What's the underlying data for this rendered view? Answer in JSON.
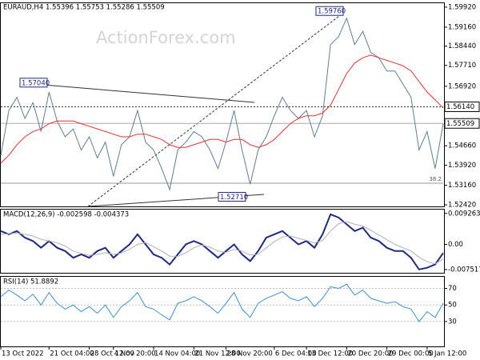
{
  "chart_data": [
    {
      "type": "line",
      "title": "EURAUD,H4  1.55396 1.55753 1.55286 1.55509",
      "watermark": "ActionForex.com",
      "ylim": [
        1.5236,
        1.6007
      ],
      "yticks": [
        {
          "value": 1.5992,
          "label": "1.59920"
        },
        {
          "value": 1.5916,
          "label": "1.59160"
        },
        {
          "value": 1.5844,
          "label": "1.58440"
        },
        {
          "value": 1.5771,
          "label": "1.57710"
        },
        {
          "value": 1.5692,
          "label": "1.56920"
        },
        {
          "value": 1.5466,
          "label": "1.54660"
        },
        {
          "value": 1.5392,
          "label": "1.53920"
        },
        {
          "value": 1.5316,
          "label": "1.53160"
        },
        {
          "value": 1.5242,
          "label": "1.52420"
        }
      ],
      "series": [
        {
          "color": "#5b7f95",
          "values": [
            1.543,
            1.56,
            1.565,
            1.557,
            1.563,
            1.552,
            1.567,
            1.556,
            1.55,
            1.553,
            1.545,
            1.55,
            1.542,
            1.548,
            1.535,
            1.547,
            1.55,
            1.56,
            1.548,
            1.545,
            1.538,
            1.53,
            1.545,
            1.548,
            1.552,
            1.55,
            1.545,
            1.538,
            1.548,
            1.56,
            1.545,
            1.532,
            1.545,
            1.55,
            1.558,
            1.565,
            1.56,
            1.557,
            1.56,
            1.55,
            1.558,
            1.585,
            1.588,
            1.595,
            1.585,
            1.59,
            1.582,
            1.58,
            1.575,
            1.575,
            1.57,
            1.565,
            1.545,
            1.552,
            1.538,
            1.555
          ]
        },
        {
          "color": "#e8312f",
          "values": [
            1.54,
            1.543,
            1.547,
            1.55,
            1.552,
            1.553,
            1.555,
            1.556,
            1.556,
            1.556,
            1.555,
            1.554,
            1.553,
            1.552,
            1.551,
            1.55,
            1.55,
            1.551,
            1.551,
            1.55,
            1.549,
            1.547,
            1.546,
            1.546,
            1.547,
            1.548,
            1.549,
            1.549,
            1.548,
            1.549,
            1.549,
            1.547,
            1.546,
            1.547,
            1.549,
            1.552,
            1.555,
            1.557,
            1.558,
            1.558,
            1.559,
            1.562,
            1.568,
            1.574,
            1.578,
            1.58,
            1.581,
            1.58,
            1.579,
            1.578,
            1.577,
            1.575,
            1.571,
            1.567,
            1.564,
            1.561
          ]
        }
      ],
      "levels": [
        {
          "value": 1.5614,
          "label": "1.56140",
          "style": "dotted"
        },
        {
          "value": 1.55509,
          "label": "1.55509",
          "style": "solid"
        }
      ],
      "fib": {
        "value": 1.5324,
        "label": "38.2"
      },
      "annotations": [
        {
          "value": 1.5704,
          "label": "1.57040"
        },
        {
          "value": 1.5976,
          "label": "1.59760"
        },
        {
          "value": 1.5271,
          "label": "1.52710"
        }
      ]
    },
    {
      "type": "line",
      "title": "MACD(12,26,9) -0.002598 -0.004373",
      "ylim": [
        -0.0085,
        0.0104
      ],
      "yticks": [
        0.009263,
        {
          "value": 0,
          "label": "0.00"
        },
        -0.007517
      ],
      "series": [
        {
          "color": "#1f2a80",
          "values": [
            0.004,
            0.003,
            0.004,
            0.002,
            0.001,
            -0.001,
            0.001,
            -0.001,
            -0.002,
            -0.004,
            -0.003,
            -0.004,
            -0.002,
            -0.001,
            -0.004,
            -0.002,
            0,
            0.003,
            0,
            -0.003,
            -0.004,
            -0.006,
            -0.003,
            0,
            0.001,
            0,
            -0.002,
            -0.004,
            -0.002,
            0,
            -0.003,
            -0.005,
            -0.002,
            0.002,
            0.003,
            0.004,
            0.002,
            0,
            0.001,
            -0.001,
            0.003,
            0.009,
            0.008,
            0.006,
            0.004,
            0.005,
            0.002,
            0.001,
            -0.001,
            -0.002,
            -0.002,
            -0.004,
            -0.0075,
            -0.007,
            -0.006,
            -0.0026
          ]
        },
        {
          "color": "#b0b0b0",
          "values": [
            0.003,
            0.0032,
            0.0034,
            0.003,
            0.0025,
            0.0015,
            0.001,
            0.0005,
            -0.0005,
            -0.002,
            -0.0027,
            -0.0033,
            -0.003,
            -0.0025,
            -0.003,
            -0.0026,
            -0.0015,
            0,
            0.0005,
            -0.0007,
            -0.002,
            -0.0035,
            -0.0036,
            -0.0025,
            -0.001,
            -0.0002,
            -0.0008,
            -0.002,
            -0.0024,
            -0.0015,
            -0.002,
            -0.0032,
            -0.003,
            -0.001,
            0.0008,
            0.0022,
            0.0025,
            0.0018,
            0.0012,
            0.0004,
            0.0012,
            0.004,
            0.0062,
            0.0068,
            0.006,
            0.0055,
            0.0042,
            0.0028,
            0.0014,
            0,
            -0.001,
            -0.002,
            -0.0038,
            -0.0052,
            -0.0058,
            -0.0044
          ]
        }
      ]
    },
    {
      "type": "line",
      "title": "RSI(14) 51.8892",
      "ylim": [
        0,
        84
      ],
      "yticks": [
        70,
        50,
        30
      ],
      "categories": [
        "13 Oct 2022",
        null,
        null,
        null,
        null,
        null,
        "21 Oct 04:00",
        null,
        null,
        null,
        null,
        "28 Oct 12:00",
        null,
        null,
        "4 Nov 20:00",
        null,
        null,
        null,
        null,
        "14 Nov 04:00",
        null,
        null,
        null,
        null,
        "21 Nov 12:00",
        null,
        null,
        null,
        "28 Nov 20:00",
        null,
        null,
        null,
        null,
        null,
        "6 Dec 04:00",
        null,
        null,
        null,
        "13 Dec 12:00",
        null,
        null,
        null,
        null,
        "20 Dec 20:00",
        null,
        null,
        null,
        null,
        "29 Dec 00:00",
        null,
        null,
        null,
        null,
        "5 Jan 12:00",
        null,
        null
      ],
      "series": [
        {
          "color": "#3c8fd8",
          "values": [
            60,
            68,
            62,
            55,
            63,
            50,
            65,
            52,
            45,
            50,
            42,
            48,
            40,
            50,
            35,
            48,
            55,
            65,
            48,
            45,
            38,
            32,
            52,
            55,
            60,
            55,
            48,
            40,
            52,
            65,
            45,
            35,
            52,
            58,
            62,
            66,
            58,
            55,
            60,
            48,
            58,
            72,
            70,
            75,
            62,
            68,
            58,
            55,
            52,
            54,
            48,
            45,
            30,
            42,
            35,
            52
          ]
        }
      ]
    }
  ]
}
